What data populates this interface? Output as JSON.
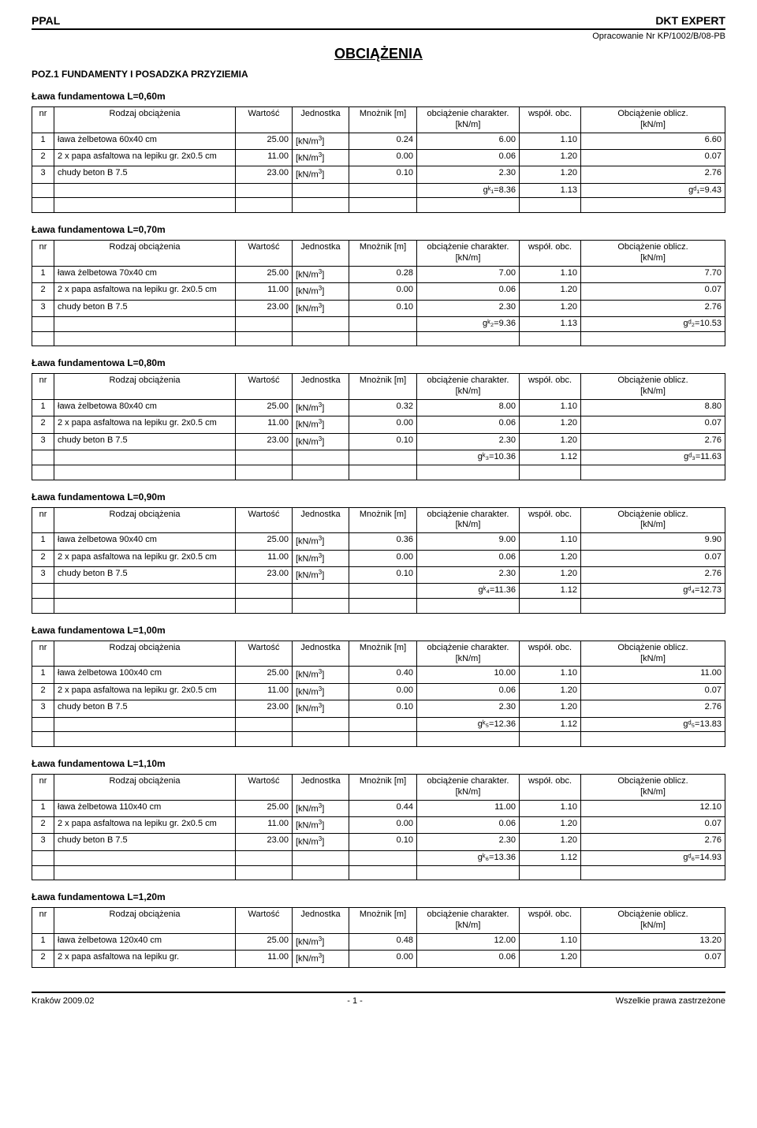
{
  "header": {
    "left": "PPAL",
    "right": "DKT EXPERT",
    "sub": "Opracowanie Nr KP/1002/B/08-PB"
  },
  "title": "OBCIĄŻENIA",
  "section_title": "POZ.1 FUNDAMENTY I POSADZKA PRZYZIEMIA",
  "columns": {
    "nr": "nr",
    "rodzaj": "Rodzaj obciążenia",
    "wartosc": "Wartość",
    "jednostka": "Jednostka",
    "mnoznik": "Mnożnik [m]",
    "char": "obciążenie charakter.",
    "char_unit": "[kN/m]",
    "wsp": "współ. obc.",
    "oblicz": "Obciążenie oblicz.",
    "oblicz_unit": "[kN/m]"
  },
  "unit_knm3": "[kN/m³]",
  "tables": [
    {
      "title": "Ława fundamentowa L=0,60m",
      "rows": [
        {
          "nr": "1",
          "rodzaj": "ława żelbetowa 60x40 cm",
          "wart": "25.00",
          "jedn": "[kN/m³]",
          "mnoz": "0.24",
          "char": "6.00",
          "wsp": "1.10",
          "obl": "6.60"
        },
        {
          "nr": "2",
          "rodzaj": "2 x papa asfaltowa na lepiku gr. 2x0.5 cm",
          "wart": "11.00",
          "jedn": "[kN/m³]",
          "mnoz": "0.00",
          "char": "0.06",
          "wsp": "1.20",
          "obl": "0.07"
        },
        {
          "nr": "3",
          "rodzaj": "chudy beton B 7.5",
          "wart": "23.00",
          "jedn": "[kN/m³]",
          "mnoz": "0.10",
          "char": "2.30",
          "wsp": "1.20",
          "obl": "2.76"
        }
      ],
      "sum": {
        "gk_label": "gᵏ₁=8.36",
        "wsp": "1.13",
        "gd_label": "gᵈ₁=9.43"
      }
    },
    {
      "title": "Ława fundamentowa L=0,70m",
      "rows": [
        {
          "nr": "1",
          "rodzaj": "ława żelbetowa 70x40 cm",
          "wart": "25.00",
          "jedn": "[kN/m³]",
          "mnoz": "0.28",
          "char": "7.00",
          "wsp": "1.10",
          "obl": "7.70"
        },
        {
          "nr": "2",
          "rodzaj": "2 x papa asfaltowa na lepiku gr. 2x0.5 cm",
          "wart": "11.00",
          "jedn": "[kN/m³]",
          "mnoz": "0.00",
          "char": "0.06",
          "wsp": "1.20",
          "obl": "0.07"
        },
        {
          "nr": "3",
          "rodzaj": "chudy beton B 7.5",
          "wart": "23.00",
          "jedn": "[kN/m³]",
          "mnoz": "0.10",
          "char": "2.30",
          "wsp": "1.20",
          "obl": "2.76"
        }
      ],
      "sum": {
        "gk_label": "gᵏ₂=9.36",
        "wsp": "1.13",
        "gd_label": "gᵈ₂=10.53"
      }
    },
    {
      "title": "Ława fundamentowa L=0,80m",
      "rows": [
        {
          "nr": "1",
          "rodzaj": "ława żelbetowa 80x40 cm",
          "wart": "25.00",
          "jedn": "[kN/m³]",
          "mnoz": "0.32",
          "char": "8.00",
          "wsp": "1.10",
          "obl": "8.80"
        },
        {
          "nr": "2",
          "rodzaj": "2 x papa asfaltowa na lepiku gr. 2x0.5 cm",
          "wart": "11.00",
          "jedn": "[kN/m³]",
          "mnoz": "0.00",
          "char": "0.06",
          "wsp": "1.20",
          "obl": "0.07"
        },
        {
          "nr": "3",
          "rodzaj": "chudy beton B 7.5",
          "wart": "23.00",
          "jedn": "[kN/m³]",
          "mnoz": "0.10",
          "char": "2.30",
          "wsp": "1.20",
          "obl": "2.76"
        }
      ],
      "sum": {
        "gk_label": "gᵏ₃=10.36",
        "wsp": "1.12",
        "gd_label": "gᵈ₃=11.63"
      }
    },
    {
      "title": "Ława fundamentowa L=0,90m",
      "rows": [
        {
          "nr": "1",
          "rodzaj": "ława żelbetowa 90x40 cm",
          "wart": "25.00",
          "jedn": "[kN/m³]",
          "mnoz": "0.36",
          "char": "9.00",
          "wsp": "1.10",
          "obl": "9.90"
        },
        {
          "nr": "2",
          "rodzaj": "2 x papa asfaltowa na lepiku gr. 2x0.5 cm",
          "wart": "11.00",
          "jedn": "[kN/m³]",
          "mnoz": "0.00",
          "char": "0.06",
          "wsp": "1.20",
          "obl": "0.07"
        },
        {
          "nr": "3",
          "rodzaj": "chudy beton B 7.5",
          "wart": "23.00",
          "jedn": "[kN/m³]",
          "mnoz": "0.10",
          "char": "2.30",
          "wsp": "1.20",
          "obl": "2.76"
        }
      ],
      "sum": {
        "gk_label": "gᵏ₄=11.36",
        "wsp": "1.12",
        "gd_label": "gᵈ₄=12.73"
      }
    },
    {
      "title": "Ława fundamentowa L=1,00m",
      "rows": [
        {
          "nr": "1",
          "rodzaj": "ława żelbetowa 100x40 cm",
          "wart": "25.00",
          "jedn": "[kN/m³]",
          "mnoz": "0.40",
          "char": "10.00",
          "wsp": "1.10",
          "obl": "11.00"
        },
        {
          "nr": "2",
          "rodzaj": "2 x papa asfaltowa na lepiku gr. 2x0.5 cm",
          "wart": "11.00",
          "jedn": "[kN/m³]",
          "mnoz": "0.00",
          "char": "0.06",
          "wsp": "1.20",
          "obl": "0.07"
        },
        {
          "nr": "3",
          "rodzaj": "chudy beton B 7.5",
          "wart": "23.00",
          "jedn": "[kN/m³]",
          "mnoz": "0.10",
          "char": "2.30",
          "wsp": "1.20",
          "obl": "2.76"
        }
      ],
      "sum": {
        "gk_label": "gᵏ₅=12.36",
        "wsp": "1.12",
        "gd_label": "gᵈ₅=13.83"
      }
    },
    {
      "title": "Ława fundamentowa L=1,10m",
      "rows": [
        {
          "nr": "1",
          "rodzaj": "ława żelbetowa 110x40 cm",
          "wart": "25.00",
          "jedn": "[kN/m³]",
          "mnoz": "0.44",
          "char": "11.00",
          "wsp": "1.10",
          "obl": "12.10"
        },
        {
          "nr": "2",
          "rodzaj": "2 x papa asfaltowa na lepiku gr. 2x0.5 cm",
          "wart": "11.00",
          "jedn": "[kN/m³]",
          "mnoz": "0.00",
          "char": "0.06",
          "wsp": "1.20",
          "obl": "0.07"
        },
        {
          "nr": "3",
          "rodzaj": "chudy beton B 7.5",
          "wart": "23.00",
          "jedn": "[kN/m³]",
          "mnoz": "0.10",
          "char": "2.30",
          "wsp": "1.20",
          "obl": "2.76"
        }
      ],
      "sum": {
        "gk_label": "gᵏ₆=13.36",
        "wsp": "1.12",
        "gd_label": "gᵈ₆=14.93"
      }
    },
    {
      "title": "Ława fundamentowa L=1,20m",
      "rows": [
        {
          "nr": "1",
          "rodzaj": "ława żelbetowa 120x40 cm",
          "wart": "25.00",
          "jedn": "[kN/m³]",
          "mnoz": "0.48",
          "char": "12.00",
          "wsp": "1.10",
          "obl": "13.20"
        },
        {
          "nr": "2",
          "rodzaj": "2 x papa asfaltowa na lepiku gr.",
          "wart": "11.00",
          "jedn": "[kN/m³]",
          "mnoz": "0.00",
          "char": "0.06",
          "wsp": "1.20",
          "obl": "0.07"
        }
      ],
      "partial": true
    }
  ],
  "footer": {
    "left": "Kraków 2009.02",
    "center": "- 1 -",
    "right": "Wszelkie prawa zastrzeżone"
  }
}
